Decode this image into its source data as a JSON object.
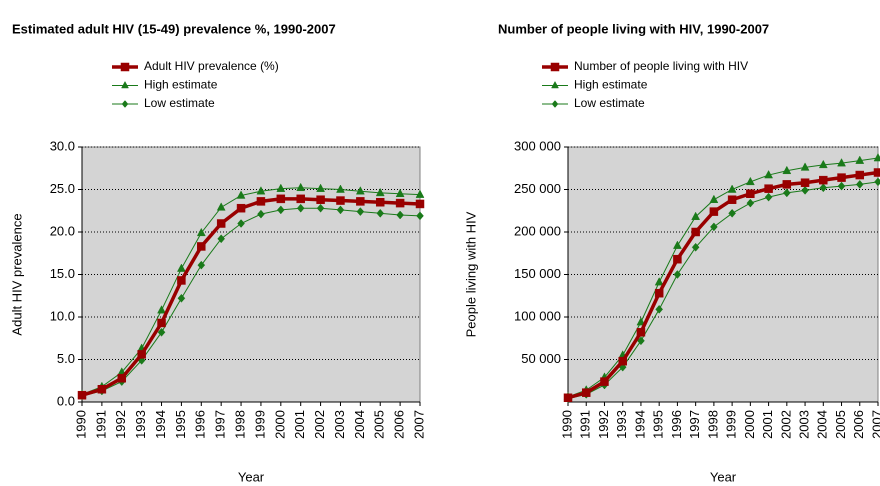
{
  "chart_data": [
    {
      "type": "line",
      "title": "Estimated adult HIV (15-49) prevalence %, 1990-2007",
      "y_label": "Adult HIV prevalence",
      "x_label": "Year",
      "categories": [
        "1990",
        "1991",
        "1992",
        "1993",
        "1994",
        "1995",
        "1996",
        "1997",
        "1998",
        "1999",
        "2000",
        "2001",
        "2002",
        "2003",
        "2004",
        "2005",
        "2006",
        "2007"
      ],
      "series": [
        {
          "name": "Adult HIV prevalence (%)",
          "color": "#990000",
          "marker": "square",
          "values": [
            0.8,
            1.5,
            2.8,
            5.6,
            9.3,
            14.3,
            18.3,
            21.0,
            22.8,
            23.6,
            23.9,
            23.9,
            23.8,
            23.7,
            23.6,
            23.5,
            23.4,
            23.3
          ]
        },
        {
          "name": "High estimate",
          "color": "#1a7a1a",
          "marker": "triangle",
          "values": [
            0.9,
            1.8,
            3.5,
            6.3,
            10.8,
            15.7,
            19.9,
            22.9,
            24.3,
            24.8,
            25.1,
            25.2,
            25.1,
            25.0,
            24.8,
            24.6,
            24.5,
            24.4
          ]
        },
        {
          "name": "Low estimate",
          "color": "#1a7a1a",
          "marker": "diamond",
          "values": [
            0.7,
            1.3,
            2.4,
            4.9,
            8.2,
            12.2,
            16.1,
            19.2,
            21.0,
            22.1,
            22.6,
            22.8,
            22.8,
            22.6,
            22.4,
            22.2,
            22.0,
            21.9
          ]
        }
      ],
      "ylim": [
        0,
        30
      ],
      "yticks": [
        {
          "value": 0,
          "label": "0.0"
        },
        {
          "value": 5,
          "label": "5.0"
        },
        {
          "value": 10,
          "label": "10.0"
        },
        {
          "value": 15,
          "label": "15.0"
        },
        {
          "value": 20,
          "label": "20.0"
        },
        {
          "value": 25,
          "label": "25.0"
        },
        {
          "value": 30,
          "label": "30.0"
        }
      ],
      "grid": true
    },
    {
      "type": "line",
      "title": "Number of people living with HIV, 1990-2007",
      "y_label": "People living with HIV",
      "x_label": "Year",
      "categories": [
        "1990",
        "1991",
        "1992",
        "1993",
        "1994",
        "1995",
        "1996",
        "1997",
        "1998",
        "1999",
        "2000",
        "2001",
        "2002",
        "2003",
        "2004",
        "2005",
        "2006",
        "2007"
      ],
      "series": [
        {
          "name": "Number of people living with HIV",
          "color": "#990000",
          "marker": "square",
          "values": [
            5000,
            11000,
            24000,
            48000,
            82000,
            128000,
            168000,
            200000,
            224000,
            238000,
            245000,
            251000,
            256000,
            258000,
            261000,
            264000,
            267000,
            270000
          ]
        },
        {
          "name": "High estimate",
          "color": "#1a7a1a",
          "marker": "triangle",
          "values": [
            6000,
            14000,
            29000,
            55000,
            94000,
            141000,
            184000,
            218000,
            238000,
            250000,
            259000,
            267000,
            272000,
            276000,
            279000,
            281000,
            284000,
            287000
          ]
        },
        {
          "name": "Low estimate",
          "color": "#1a7a1a",
          "marker": "diamond",
          "values": [
            4000,
            9000,
            20000,
            41000,
            72000,
            109000,
            150000,
            182000,
            206000,
            222000,
            234000,
            241000,
            246000,
            249000,
            252000,
            254000,
            256000,
            259000
          ]
        }
      ],
      "ylim": [
        0,
        300000
      ],
      "yticks": [
        {
          "value": 50000,
          "label": "50 000"
        },
        {
          "value": 100000,
          "label": "100 000"
        },
        {
          "value": 150000,
          "label": "150 000"
        },
        {
          "value": 200000,
          "label": "200 000"
        },
        {
          "value": 250000,
          "label": "250 000"
        },
        {
          "value": 300000,
          "label": "300 000"
        }
      ],
      "grid": true
    }
  ]
}
